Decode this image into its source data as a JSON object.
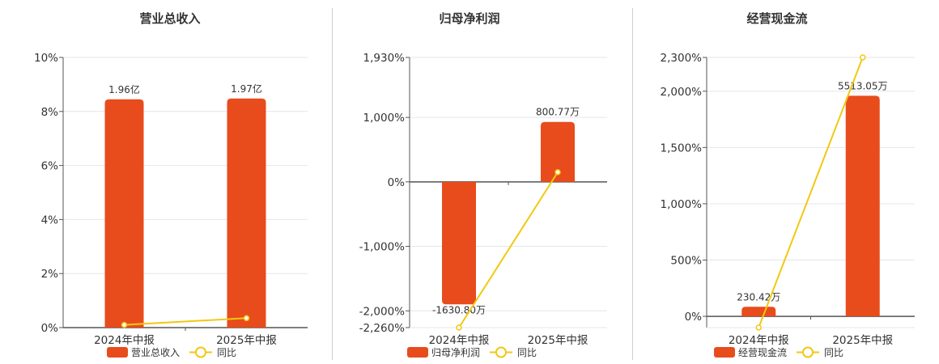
{
  "chart_data": [
    {
      "type": "bar",
      "title": "营业总收入",
      "categories": [
        "2024年中报",
        "2025年中报"
      ],
      "y_tick_labels": [
        "0%",
        "2%",
        "4%",
        "6%",
        "8%",
        "10%"
      ],
      "ylim": [
        0,
        10
      ],
      "yoy_ylim": [
        0,
        10
      ],
      "series": [
        {
          "name": "营业总收入",
          "kind": "bar",
          "axis": "left",
          "values": [
            8.45,
            8.48
          ],
          "labels": [
            "1.96亿",
            "1.97亿"
          ]
        },
        {
          "name": "同比",
          "kind": "line",
          "axis": "left",
          "values": [
            0.1,
            0.35
          ]
        }
      ],
      "legend": [
        "营业总收入",
        "同比"
      ],
      "legend_position": "bottom"
    },
    {
      "type": "bar",
      "title": "归母净利润",
      "categories": [
        "2024年中报",
        "2025年中报"
      ],
      "y_tick_labels": [
        "-2,260%",
        "-2,000%",
        "-1,000%",
        "0%",
        "1,000%",
        "1,930%"
      ],
      "y_tick_values": [
        -2260,
        -2000,
        -1000,
        0,
        1000,
        1930
      ],
      "ylim": [
        -2260,
        1930
      ],
      "yoy_ylim": [
        -2260,
        1930
      ],
      "series": [
        {
          "name": "归母净利润",
          "kind": "bar",
          "axis": "left",
          "values": [
            -1900,
            930
          ],
          "labels": [
            "-1630.80万",
            "800.77万"
          ]
        },
        {
          "name": "同比",
          "kind": "line",
          "axis": "left",
          "values": [
            -2260,
            150
          ]
        }
      ],
      "legend": [
        "归母净利润",
        "同比"
      ],
      "legend_position": "bottom"
    },
    {
      "type": "bar",
      "title": "经营现金流",
      "categories": [
        "2024年中报",
        "2025年中报"
      ],
      "y_tick_labels": [
        "0%",
        "500%",
        "1,000%",
        "1,500%",
        "2,000%",
        "2,300%"
      ],
      "y_tick_values": [
        0,
        500,
        1000,
        1500,
        2000,
        2300
      ],
      "ylim": [
        -100,
        2300
      ],
      "yoy_ylim": [
        -100,
        2300
      ],
      "series": [
        {
          "name": "经营现金流",
          "kind": "bar",
          "axis": "left",
          "values": [
            85,
            1960
          ],
          "labels": [
            "230.42万",
            "5513.05万"
          ]
        },
        {
          "name": "同比",
          "kind": "line",
          "axis": "left",
          "values": [
            -100,
            2300
          ]
        }
      ],
      "legend": [
        "经营现金流",
        "同比"
      ],
      "legend_position": "bottom"
    }
  ],
  "colors": {
    "bar": "#e84c1c",
    "line": "#f2c811",
    "grid": "#e3e6ee",
    "axis": "#555555",
    "text": "#333333"
  }
}
